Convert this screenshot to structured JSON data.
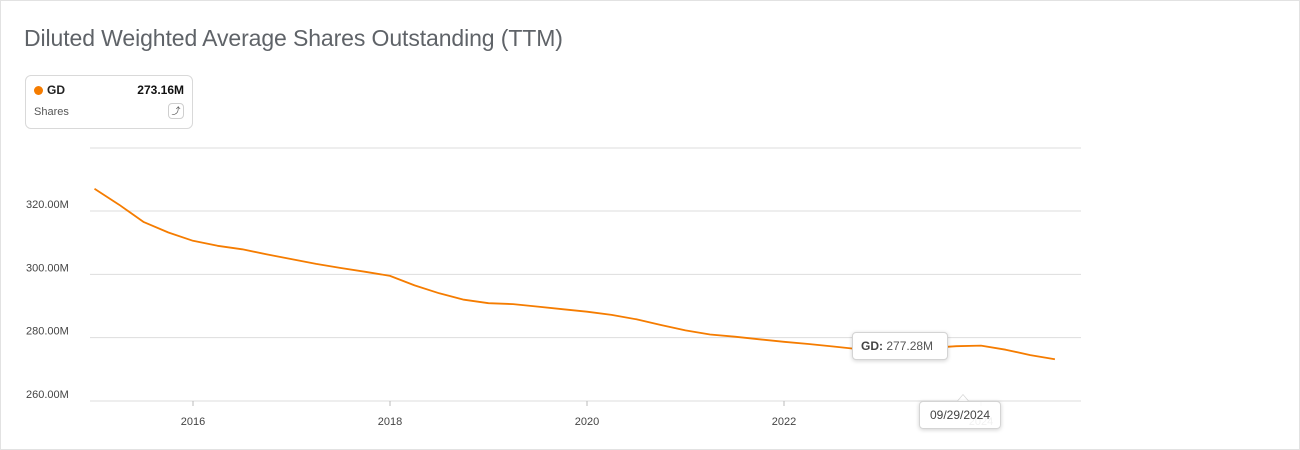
{
  "title": "Diluted Weighted Average Shares Outstanding (TTM)",
  "legend": {
    "ticker": "GD",
    "value": "273.16M",
    "metric": "Shares",
    "edit_icon": "edit-icon"
  },
  "tooltip": {
    "series_label": "GD:",
    "value": "277.28M"
  },
  "date_flag": "09/29/2024",
  "colors": {
    "series": "#f57c00",
    "grid": "#dddddd"
  },
  "chart_data": {
    "type": "line",
    "title": "Diluted Weighted Average Shares Outstanding (TTM)",
    "y_unit": "M",
    "ylim": [
      255,
      340
    ],
    "xlim": [
      2014.95,
      2024.9
    ],
    "y_ticks": [
      260,
      280,
      300,
      320
    ],
    "y_tick_labels": [
      "260.00M",
      "280.00M",
      "300.00M",
      "320.00M"
    ],
    "x_ticks": [
      2016,
      2018,
      2020,
      2022,
      2024
    ],
    "x_tick_labels": [
      "2016",
      "2018",
      "2020",
      "2022",
      "2024"
    ],
    "grid": true,
    "legend_position": "top-left",
    "series": [
      {
        "name": "GD",
        "x": [
          2015.0,
          2015.25,
          2015.5,
          2015.75,
          2016.0,
          2016.25,
          2016.5,
          2016.75,
          2017.0,
          2017.25,
          2017.5,
          2017.75,
          2018.0,
          2018.25,
          2018.5,
          2018.75,
          2019.0,
          2019.25,
          2019.5,
          2019.75,
          2020.0,
          2020.25,
          2020.5,
          2020.75,
          2021.0,
          2021.25,
          2021.5,
          2021.75,
          2022.0,
          2022.25,
          2022.5,
          2022.75,
          2023.0,
          2023.25,
          2023.5,
          2023.75,
          2024.0,
          2024.25,
          2024.5,
          2024.75
        ],
        "values": [
          327.0,
          322.0,
          316.5,
          313.2,
          310.6,
          309.0,
          307.9,
          306.3,
          304.8,
          303.3,
          302.0,
          300.8,
          299.5,
          296.5,
          294.0,
          292.0,
          290.9,
          290.6,
          289.8,
          289.0,
          288.2,
          287.2,
          285.8,
          284.0,
          282.3,
          281.0,
          280.3,
          279.5,
          278.7,
          278.0,
          277.2,
          276.4,
          276.0,
          276.3,
          276.8,
          277.3,
          277.5,
          276.2,
          274.5,
          273.16
        ]
      }
    ]
  }
}
